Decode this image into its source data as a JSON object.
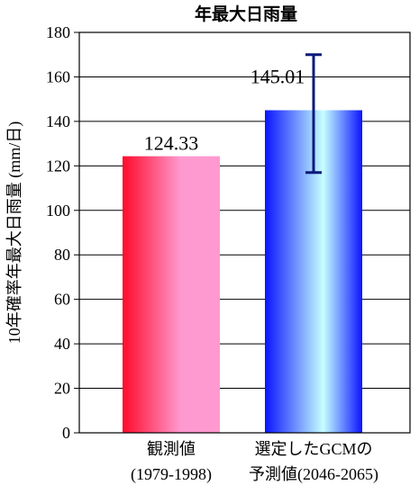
{
  "chart_data": {
    "type": "bar",
    "title": "年最大日雨量",
    "xlabel": "",
    "ylabel": "10年確率年最大日雨量 (mm/日)",
    "ylim": [
      0,
      180
    ],
    "yticks": [
      0,
      20,
      40,
      60,
      80,
      100,
      120,
      140,
      160,
      180
    ],
    "grid": true,
    "legend": "none",
    "categories": [
      {
        "line1": "観測値",
        "line2": "(1979-1998)"
      },
      {
        "line1": "選定したGCMの",
        "line2": "予測値(2046-2065)"
      }
    ],
    "values": [
      124.33,
      145.01
    ],
    "value_labels": [
      "124.33",
      "145.01"
    ],
    "error_bars": [
      null,
      {
        "low": 117,
        "high": 170
      }
    ],
    "colors": {
      "bar_1_edge": "#ff0a2a",
      "bar_1_center": "#ff9ad0",
      "bar_2_edge": "#0a14ff",
      "bar_2_center": "#c6ffff",
      "error_bar": "#0c1a7a",
      "axis": "#000000",
      "grid": "#000000"
    }
  }
}
